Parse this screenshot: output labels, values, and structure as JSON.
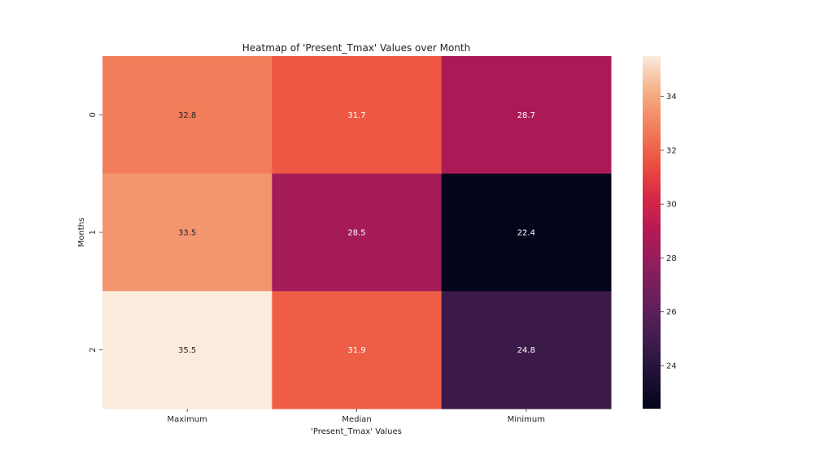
{
  "chart_data": {
    "type": "heatmap",
    "title": "Heatmap of 'Present_Tmax' Values over Month",
    "xlabel": "'Present_Tmax' Values",
    "ylabel": "Months",
    "columns": [
      "Maximum",
      "Median",
      "Minimum"
    ],
    "rows": [
      "0",
      "1",
      "2"
    ],
    "values": [
      [
        32.8,
        31.7,
        28.7
      ],
      [
        33.5,
        28.5,
        22.4
      ],
      [
        35.5,
        31.9,
        24.8
      ]
    ],
    "value_labels": [
      [
        "32.8",
        "31.7",
        "28.7"
      ],
      [
        "33.5",
        "28.5",
        "22.4"
      ],
      [
        "35.5",
        "31.9",
        "24.8"
      ]
    ],
    "colorbar": {
      "vmin": 22.4,
      "vmax": 35.5,
      "ticks": [
        24,
        26,
        28,
        30,
        32,
        34
      ],
      "tick_labels": [
        "24",
        "26",
        "28",
        "30",
        "32",
        "34"
      ],
      "colormap": "rocket"
    }
  }
}
